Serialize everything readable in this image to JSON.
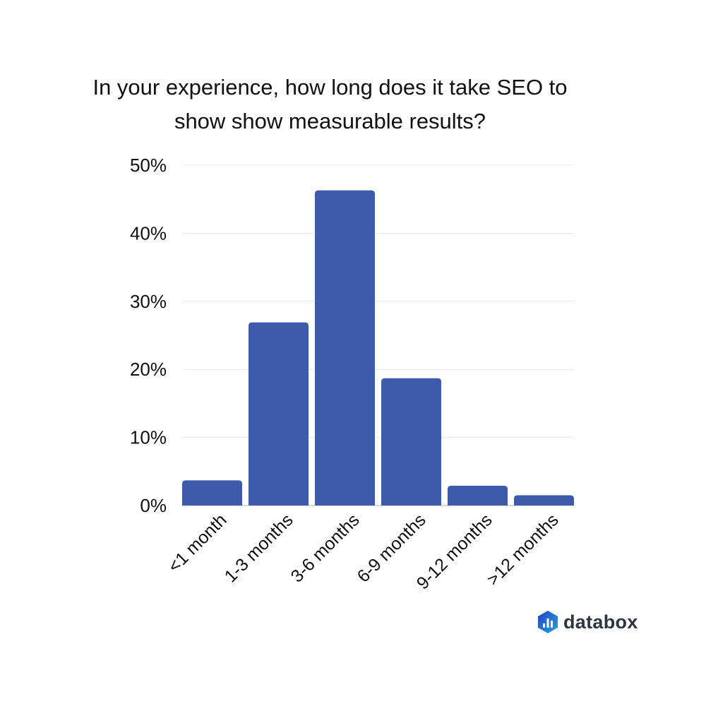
{
  "chart_data": {
    "type": "bar",
    "title": "In your experience, how long does it take SEO to show show measurable results?",
    "title_lines": [
      "In your experience, how long does it take SEO to",
      "show show measurable results?"
    ],
    "categories": [
      "<1 month",
      "1-3 months",
      "3-6 months",
      "6-9 months",
      "9-12 months",
      ">12 months"
    ],
    "values": [
      3.7,
      26.9,
      46.3,
      18.7,
      2.9,
      1.5
    ],
    "unit": "%",
    "ylim": [
      0,
      50
    ],
    "yticks": [
      "0%",
      "10%",
      "20%",
      "30%",
      "40%",
      "50%"
    ],
    "grid": true,
    "legend": "none",
    "bar_color": "#3d5aab"
  },
  "brand": {
    "name": "databox",
    "colors": [
      "#2b4fc9",
      "#1fa0e0"
    ]
  }
}
